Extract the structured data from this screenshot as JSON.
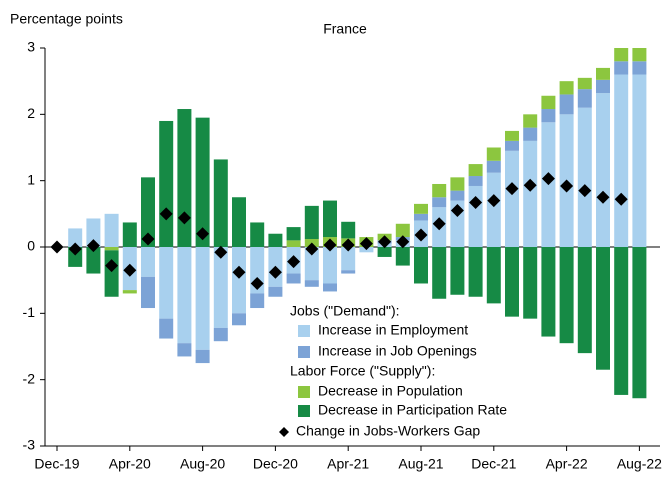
{
  "chart_data": {
    "type": "bar",
    "title": "France",
    "y_label": "Percentage points",
    "categories": [
      "Dec-19",
      null,
      null,
      null,
      "Apr-20",
      null,
      null,
      null,
      "Aug-20",
      null,
      null,
      null,
      "Dec-20",
      null,
      null,
      null,
      "Apr-21",
      null,
      null,
      null,
      "Aug-21",
      null,
      null,
      null,
      "Dec-21",
      null,
      null,
      null,
      "Apr-22",
      null,
      null,
      null,
      "Aug-22"
    ],
    "legend_headers": [
      "Jobs (\"Demand\"):",
      "Labor Force (\"Supply\"):"
    ],
    "series": [
      {
        "name": "Increase in Employment",
        "color": "#a8d0ee",
        "values": [
          0,
          0.28,
          0.43,
          0.5,
          -0.65,
          -0.45,
          -1.08,
          -1.45,
          -1.55,
          -1.22,
          -1.0,
          -0.7,
          -0.6,
          -0.4,
          -0.5,
          -0.55,
          -0.35,
          -0.08,
          0.05,
          0.1,
          0.4,
          0.6,
          0.7,
          0.92,
          1.12,
          1.45,
          1.6,
          1.88,
          2.0,
          2.1,
          2.32,
          2.6,
          2.6
        ]
      },
      {
        "name": "Increase in Job Openings",
        "color": "#7ca3d6",
        "values": [
          0,
          0,
          0,
          0,
          0,
          -0.47,
          -0.3,
          -0.2,
          -0.2,
          -0.2,
          -0.18,
          -0.22,
          -0.15,
          -0.15,
          -0.1,
          -0.12,
          -0.05,
          0,
          0.05,
          0.05,
          0.1,
          0.15,
          0.15,
          0.15,
          0.18,
          0.15,
          0.2,
          0.2,
          0.3,
          0.28,
          0.2,
          0.2,
          0.2
        ]
      },
      {
        "name": "Decrease in Population",
        "color": "#8cc63f",
        "values": [
          0,
          0,
          0,
          -0.05,
          -0.05,
          0,
          0,
          0,
          0,
          0,
          0,
          0,
          0,
          0.1,
          0.12,
          0.15,
          0.13,
          0.15,
          0.1,
          0.2,
          0.15,
          0.2,
          0.2,
          0.18,
          0.2,
          0.15,
          0.2,
          0.2,
          0.2,
          0.17,
          0.18,
          0.2,
          0.2
        ]
      },
      {
        "name": "Decrease in Participation Rate",
        "color": "#168a45",
        "values": [
          0,
          -0.3,
          -0.4,
          -0.7,
          0.37,
          1.05,
          1.9,
          2.08,
          1.95,
          1.32,
          0.75,
          0.37,
          0.2,
          0.2,
          0.5,
          0.55,
          0.25,
          0,
          -0.15,
          -0.28,
          -0.55,
          -0.78,
          -0.72,
          -0.75,
          -0.85,
          -1.05,
          -1.08,
          -1.35,
          -1.45,
          -1.6,
          -1.85,
          -2.23,
          -2.28
        ]
      },
      {
        "name": "Change in Jobs-Workers Gap",
        "color": "#000000",
        "marker": "diamond",
        "values": [
          0,
          -0.03,
          0.02,
          -0.28,
          -0.35,
          0.12,
          0.5,
          0.44,
          0.2,
          -0.08,
          -0.38,
          -0.55,
          -0.38,
          -0.22,
          -0.03,
          0.03,
          0.03,
          0.05,
          0.08,
          0.08,
          0.18,
          0.35,
          0.55,
          0.67,
          0.7,
          0.88,
          0.93,
          1.03,
          0.92,
          0.85,
          0.75,
          0.72,
          null
        ]
      }
    ],
    "ylim": [
      -3,
      3
    ],
    "yticks": [
      -3,
      -2,
      -1,
      0,
      1,
      2,
      3
    ]
  }
}
